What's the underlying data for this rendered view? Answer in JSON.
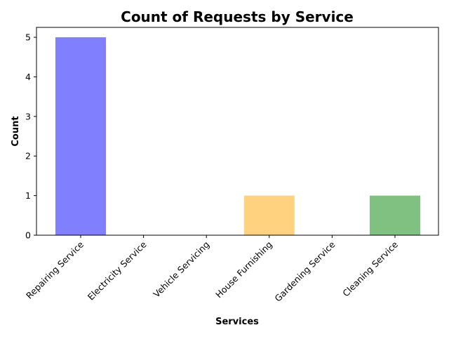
{
  "chart_data": {
    "type": "bar",
    "title": "Count of Requests by Service",
    "xlabel": "Services",
    "ylabel": "Count",
    "categories": [
      "Repairing Service",
      "Electricity Service",
      "Vehicle Servicing",
      "House Furnishing",
      "Gardening Service",
      "Cleaning Service"
    ],
    "values": [
      5,
      0,
      0,
      1,
      0,
      1
    ],
    "colors": [
      "#8080ff",
      "#8080ff",
      "#8080ff",
      "#ffd280",
      "#80c080",
      "#80c080"
    ],
    "yticks": [
      "0",
      "1",
      "2",
      "3",
      "4",
      "5"
    ],
    "ylim": [
      0,
      5.25
    ],
    "grid": false,
    "legend": "none"
  }
}
